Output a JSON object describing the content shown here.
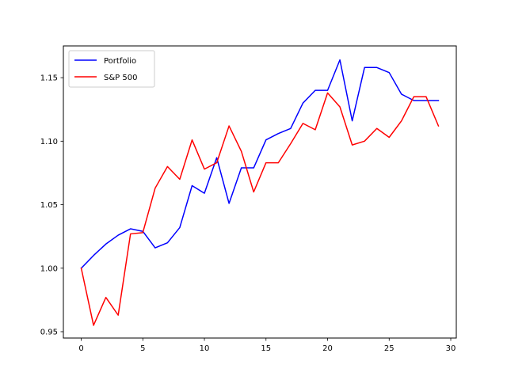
{
  "chart_data": {
    "type": "line",
    "title": "",
    "xlabel": "",
    "ylabel": "",
    "xlim": [
      -1.45,
      30.45
    ],
    "ylim": [
      0.945,
      1.175
    ],
    "xticks": [
      0,
      5,
      10,
      15,
      20,
      25,
      30
    ],
    "xtick_labels": [
      "0",
      "5",
      "10",
      "15",
      "20",
      "25",
      "30"
    ],
    "yticks": [
      0.95,
      1.0,
      1.05,
      1.1,
      1.15
    ],
    "ytick_labels": [
      "0.95",
      "1.00",
      "1.05",
      "1.10",
      "1.15"
    ],
    "grid": false,
    "legend_position": "upper-left",
    "x": [
      0,
      1,
      2,
      3,
      4,
      5,
      6,
      7,
      8,
      9,
      10,
      11,
      12,
      13,
      14,
      15,
      16,
      17,
      18,
      19,
      20,
      21,
      22,
      23,
      24,
      25,
      26,
      27,
      28,
      29
    ],
    "series": [
      {
        "name": "Portfolio",
        "color": "#0000ff",
        "values": [
          1.0,
          1.01,
          1.019,
          1.026,
          1.031,
          1.029,
          1.016,
          1.02,
          1.032,
          1.065,
          1.059,
          1.087,
          1.051,
          1.079,
          1.079,
          1.101,
          1.106,
          1.11,
          1.13,
          1.14,
          1.14,
          1.164,
          1.116,
          1.158,
          1.158,
          1.154,
          1.137,
          1.132,
          1.132,
          1.132
        ]
      },
      {
        "name": "S&P 500",
        "color": "#ff0000",
        "values": [
          1.0,
          0.955,
          0.977,
          0.963,
          1.027,
          1.028,
          1.063,
          1.08,
          1.07,
          1.101,
          1.078,
          1.083,
          1.112,
          1.092,
          1.06,
          1.083,
          1.083,
          1.098,
          1.114,
          1.109,
          1.138,
          1.127,
          1.097,
          1.1,
          1.11,
          1.103,
          1.116,
          1.135,
          1.135,
          1.112
        ]
      }
    ]
  }
}
